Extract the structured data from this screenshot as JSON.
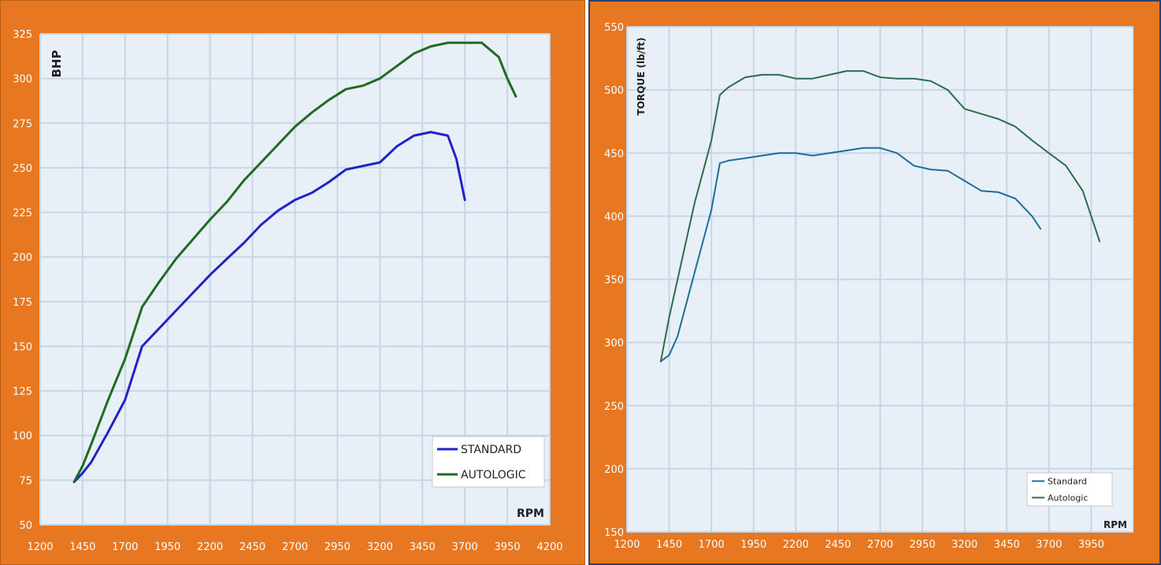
{
  "colors": {
    "frame": "#e87722",
    "plot_bg": "#e8eff7",
    "grid": "#c5d6e6"
  },
  "chart_data": [
    {
      "type": "line",
      "title": "",
      "xlabel": "RPM",
      "ylabel": "BHP",
      "xlim": [
        1200,
        4200
      ],
      "ylim": [
        50,
        325
      ],
      "xticks": [
        "1200",
        "1450",
        "1700",
        "1950",
        "2200",
        "2450",
        "2700",
        "2950",
        "3200",
        "3450",
        "3700",
        "3950",
        "4200"
      ],
      "yticks": [
        "50",
        "75",
        "100",
        "125",
        "150",
        "175",
        "200",
        "225",
        "250",
        "275",
        "300",
        "325"
      ],
      "grid": true,
      "legend_position": "bottom-right",
      "series": [
        {
          "name": "STANDARD",
          "color": "#1f23c8",
          "x": [
            1400,
            1450,
            1500,
            1600,
            1700,
            1800,
            1900,
            2000,
            2100,
            2200,
            2300,
            2400,
            2500,
            2600,
            2700,
            2800,
            2900,
            3000,
            3100,
            3200,
            3300,
            3400,
            3500,
            3600,
            3650,
            3700
          ],
          "y": [
            74,
            79,
            85,
            102,
            120,
            150,
            160,
            170,
            180,
            190,
            199,
            208,
            218,
            226,
            232,
            236,
            242,
            249,
            251,
            253,
            262,
            268,
            270,
            268,
            255,
            232
          ]
        },
        {
          "name": "AUTOLOGIC",
          "color": "#1f6b1f",
          "x": [
            1400,
            1450,
            1500,
            1600,
            1700,
            1800,
            1900,
            2000,
            2100,
            2200,
            2300,
            2400,
            2500,
            2600,
            2700,
            2800,
            2900,
            3000,
            3100,
            3200,
            3300,
            3400,
            3500,
            3600,
            3700,
            3800,
            3900,
            3950,
            4000
          ],
          "y": [
            74,
            83,
            95,
            120,
            143,
            172,
            186,
            199,
            210,
            221,
            231,
            243,
            253,
            263,
            273,
            281,
            288,
            294,
            296,
            300,
            307,
            314,
            318,
            320,
            320,
            320,
            312,
            300,
            290
          ]
        }
      ]
    },
    {
      "type": "line",
      "title": "",
      "xlabel": "RPM",
      "ylabel": "TORQUE (lb/ft)",
      "xlim": [
        1200,
        4200
      ],
      "ylim": [
        150,
        550
      ],
      "xticks": [
        "1200",
        "1450",
        "1700",
        "1950",
        "2200",
        "2450",
        "2700",
        "2950",
        "3200",
        "3450",
        "3700",
        "3950"
      ],
      "yticks": [
        "150",
        "200",
        "250",
        "300",
        "350",
        "400",
        "450",
        "500",
        "550"
      ],
      "grid": true,
      "legend_position": "bottom-right",
      "series": [
        {
          "name": "Standard",
          "color": "#1c6e9a",
          "x": [
            1400,
            1450,
            1500,
            1600,
            1700,
            1750,
            1800,
            1900,
            2000,
            2100,
            2200,
            2300,
            2400,
            2500,
            2600,
            2700,
            2800,
            2900,
            3000,
            3100,
            3200,
            3300,
            3400,
            3500,
            3600,
            3650
          ],
          "y": [
            285,
            290,
            305,
            355,
            405,
            442,
            444,
            446,
            448,
            450,
            450,
            448,
            450,
            452,
            454,
            454,
            450,
            440,
            437,
            436,
            428,
            420,
            419,
            414,
            400,
            390
          ]
        },
        {
          "name": "Autologic",
          "color": "#2c6e4c",
          "x": [
            1400,
            1450,
            1500,
            1600,
            1700,
            1750,
            1800,
            1900,
            2000,
            2100,
            2200,
            2300,
            2400,
            2500,
            2600,
            2700,
            2800,
            2900,
            3000,
            3100,
            3200,
            3300,
            3400,
            3500,
            3600,
            3700,
            3800,
            3900,
            4000
          ],
          "y": [
            285,
            320,
            350,
            410,
            460,
            496,
            502,
            510,
            512,
            512,
            509,
            509,
            512,
            515,
            515,
            510,
            509,
            509,
            507,
            500,
            485,
            481,
            477,
            471,
            460,
            450,
            440,
            420,
            380
          ]
        }
      ]
    }
  ]
}
